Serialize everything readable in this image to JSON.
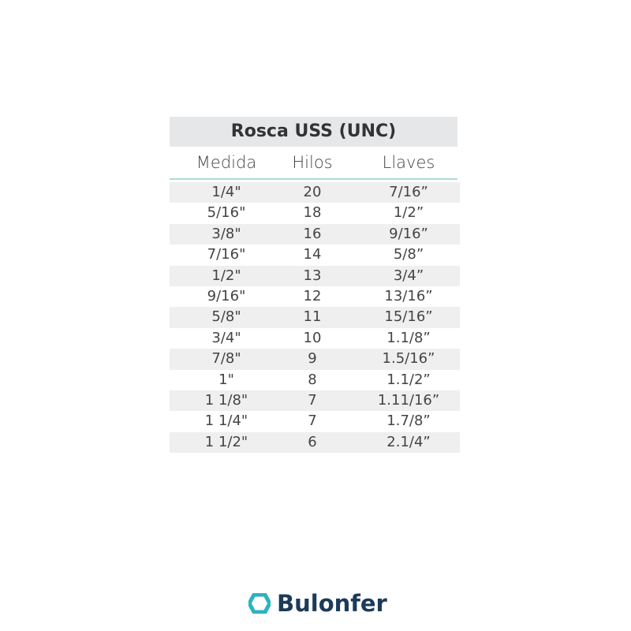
{
  "table": {
    "title": "Rosca USS (UNC)",
    "columns": [
      "Medida",
      "Hilos",
      "Llaves"
    ],
    "rows": [
      [
        "1/4\"",
        "20",
        "7/16”"
      ],
      [
        "5/16\"",
        "18",
        "1/2”"
      ],
      [
        "3/8\"",
        "16",
        "9/16”"
      ],
      [
        "7/16\"",
        "14",
        "5/8”"
      ],
      [
        "1/2\"",
        "13",
        "3/4”"
      ],
      [
        "9/16\"",
        "12",
        "13/16”"
      ],
      [
        "5/8\"",
        "11",
        "15/16”"
      ],
      [
        "3/4\"",
        "10",
        "1.1/8”"
      ],
      [
        "7/8\"",
        "9",
        "1.5/16”"
      ],
      [
        "1\"",
        "8",
        "1.1/2”"
      ],
      [
        "1 1/8\"",
        "7",
        "1.11/16”"
      ],
      [
        "1 1/4\"",
        "7",
        "1.7/8”"
      ],
      [
        "1 1/2\"",
        "6",
        "2.1/4”"
      ]
    ]
  },
  "logo": {
    "text": "Bulonfer",
    "icon": "hexagon-icon",
    "color_icon": "#2bb3c0",
    "color_text": "#1c3a5a"
  }
}
